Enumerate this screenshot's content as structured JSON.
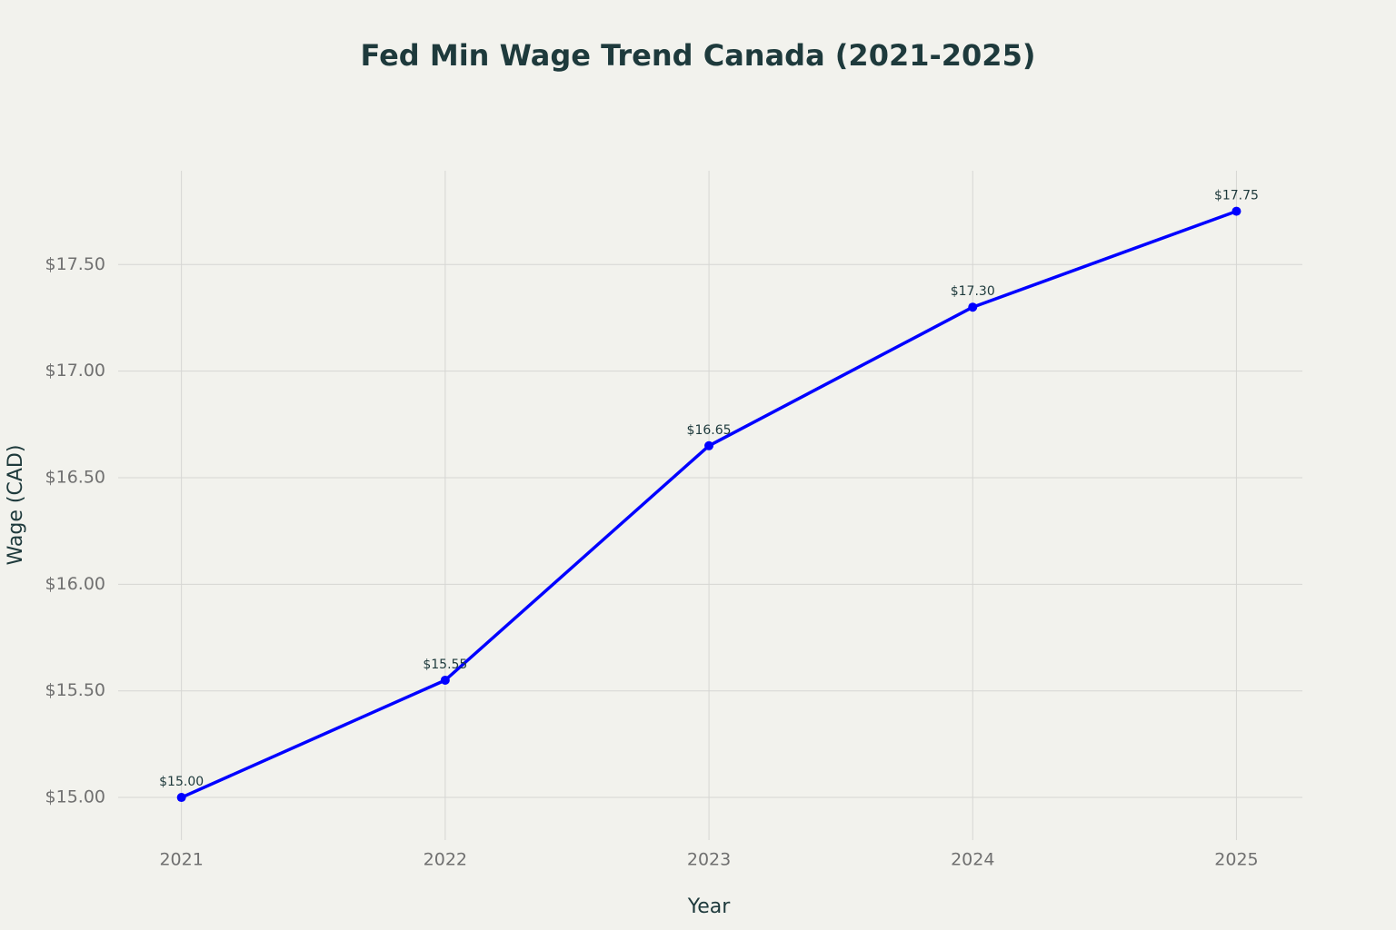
{
  "chart_data": {
    "type": "line",
    "title": "Fed Min Wage Trend Canada (2021-2025)",
    "x_label": "Year",
    "y_label": "Wage (CAD)",
    "x": [
      2021,
      2022,
      2023,
      2024,
      2025
    ],
    "series": [
      {
        "name": "Wage",
        "color": "#0000ff",
        "values": [
          15.0,
          15.55,
          16.65,
          17.3,
          17.75
        ],
        "value_labels": [
          "$15.00",
          "$15.55",
          "$16.65",
          "$17.30",
          "$17.75"
        ]
      }
    ],
    "xlim": [
      2020.76,
      2025.25
    ],
    "xticks": [
      2021,
      2022,
      2023,
      2024,
      2025
    ],
    "ylim": [
      14.8,
      17.94
    ],
    "yticks": [
      {
        "value": 15,
        "label": "$15.00"
      },
      {
        "value": 15.5,
        "label": "$15.50"
      },
      {
        "value": 16,
        "label": "$16.00"
      },
      {
        "value": 16.5,
        "label": "$16.50"
      },
      {
        "value": 17,
        "label": "$17.00"
      },
      {
        "value": 17.5,
        "label": "$17.50"
      }
    ],
    "grid": true
  }
}
